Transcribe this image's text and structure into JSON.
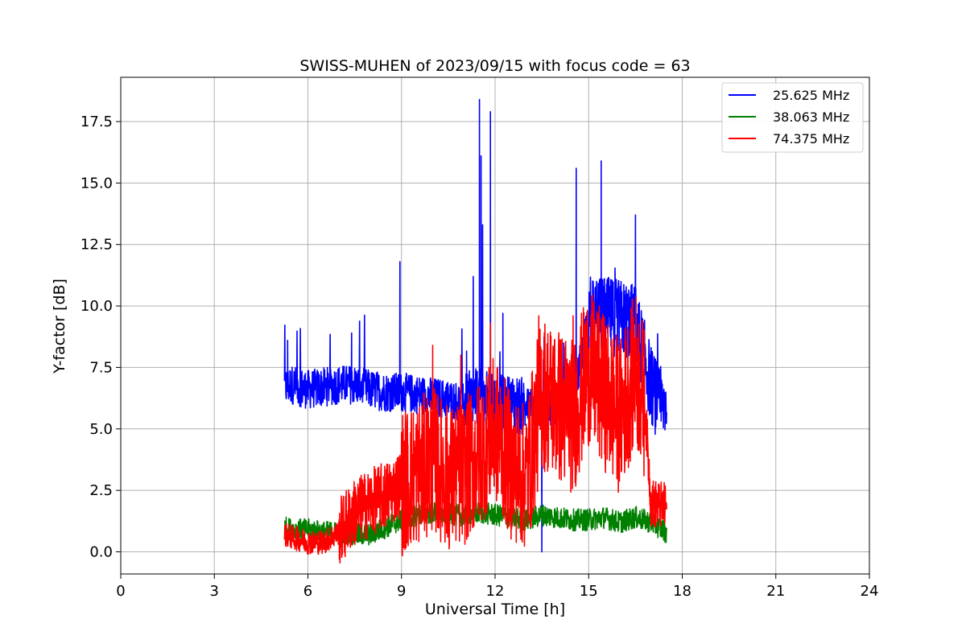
{
  "chart_data": {
    "type": "line",
    "title": "SWISS-MUHEN of 2023/09/15 with focus code = 63",
    "xlabel": "Universal Time [h]",
    "ylabel": "Y-factor [dB]",
    "xlim": [
      0,
      24
    ],
    "ylim": [
      -0.9,
      19.3
    ],
    "xticks": [
      0,
      3,
      6,
      9,
      12,
      15,
      18,
      21,
      24
    ],
    "yticks": [
      0.0,
      2.5,
      5.0,
      7.5,
      10.0,
      12.5,
      15.0,
      17.5
    ],
    "ytick_labels": [
      "0.0",
      "2.5",
      "5.0",
      "7.5",
      "10.0",
      "12.5",
      "15.0",
      "17.5"
    ],
    "grid": true,
    "legend_position": "top-right",
    "series": [
      {
        "name": "25.625 MHz",
        "color": "#0000ff",
        "x": [
          5.25,
          5.5,
          6.0,
          6.5,
          7.0,
          7.5,
          8.0,
          8.5,
          9.0,
          9.5,
          10.0,
          10.5,
          11.0,
          11.5,
          12.0,
          12.5,
          13.0,
          13.5,
          14.0,
          14.5,
          15.0,
          15.5,
          16.0,
          16.5,
          17.0,
          17.3,
          17.5
        ],
        "y": [
          6.7,
          6.8,
          6.6,
          6.7,
          6.8,
          6.8,
          6.6,
          6.5,
          6.5,
          6.4,
          6.3,
          6.2,
          6.1,
          6.3,
          6.0,
          6.0,
          5.9,
          5.9,
          6.0,
          6.1,
          9.5,
          9.6,
          9.5,
          9.3,
          6.8,
          5.8,
          6.2
        ],
        "peaks": [
          {
            "x": 5.35,
            "y": 8.6
          },
          {
            "x": 7.4,
            "y": 8.9
          },
          {
            "x": 8.95,
            "y": 11.8
          },
          {
            "x": 11.3,
            "y": 11.2
          },
          {
            "x": 11.5,
            "y": 18.4
          },
          {
            "x": 11.55,
            "y": 16.1
          },
          {
            "x": 11.6,
            "y": 13.3
          },
          {
            "x": 11.85,
            "y": 17.9
          },
          {
            "x": 12.25,
            "y": 9.7
          },
          {
            "x": 14.6,
            "y": 15.6
          },
          {
            "x": 15.4,
            "y": 15.9
          },
          {
            "x": 16.5,
            "y": 13.7
          },
          {
            "x": 13.5,
            "y": 0.0
          }
        ]
      },
      {
        "name": "38.063 MHz",
        "color": "#008000",
        "x": [
          5.25,
          5.5,
          6.0,
          6.5,
          7.0,
          7.5,
          8.0,
          8.5,
          9.0,
          9.5,
          10.0,
          10.5,
          11.0,
          11.5,
          12.0,
          12.5,
          13.0,
          13.5,
          14.0,
          14.5,
          15.0,
          15.5,
          16.0,
          16.5,
          17.0,
          17.5
        ],
        "y": [
          1.0,
          0.9,
          0.9,
          0.8,
          0.8,
          0.7,
          0.7,
          1.0,
          1.3,
          1.5,
          1.6,
          1.5,
          1.5,
          1.6,
          1.5,
          1.4,
          1.3,
          1.5,
          1.4,
          1.3,
          1.3,
          1.4,
          1.2,
          1.4,
          1.2,
          0.8
        ]
      },
      {
        "name": "74.375 MHz",
        "color": "#ff0000",
        "x": [
          5.25,
          5.5,
          6.0,
          6.5,
          7.0,
          7.5,
          8.0,
          8.5,
          9.0,
          9.5,
          10.0,
          10.5,
          11.0,
          11.5,
          12.0,
          12.5,
          13.0,
          13.5,
          14.0,
          14.5,
          15.0,
          15.5,
          16.0,
          16.5,
          16.8,
          17.0,
          17.5
        ],
        "y": [
          0.7,
          0.6,
          0.4,
          0.4,
          0.8,
          1.6,
          2.0,
          2.3,
          2.8,
          3.2,
          3.8,
          3.0,
          3.2,
          4.0,
          5.0,
          3.5,
          3.0,
          6.5,
          6.0,
          5.5,
          7.5,
          6.5,
          5.5,
          7.5,
          6.0,
          2.0,
          1.8
        ],
        "peaks": [
          {
            "x": 9.0,
            "y": 4.8
          },
          {
            "x": 10.0,
            "y": 8.4
          },
          {
            "x": 10.9,
            "y": 8.0
          },
          {
            "x": 11.85,
            "y": 9.3
          },
          {
            "x": 13.4,
            "y": 9.6
          },
          {
            "x": 14.5,
            "y": 9.6
          },
          {
            "x": 16.4,
            "y": 9.0
          }
        ]
      }
    ]
  }
}
